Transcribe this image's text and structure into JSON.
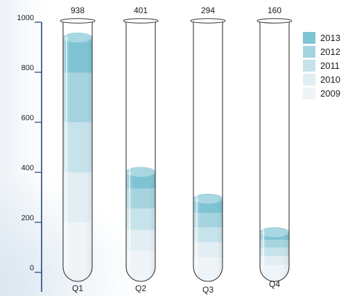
{
  "chart_data": {
    "type": "bar",
    "stacked": true,
    "categories": [
      "Q1",
      "Q2",
      "Q3",
      "Q4"
    ],
    "totals": [
      938,
      401,
      294,
      160
    ],
    "series": [
      {
        "name": "2009",
        "color": "#eef4f7",
        "values": [
          200,
          85,
          60,
          30
        ]
      },
      {
        "name": "2010",
        "color": "#e2eef3",
        "values": [
          200,
          85,
          60,
          35
        ]
      },
      {
        "name": "2011",
        "color": "#c6e2ea",
        "values": [
          200,
          85,
          60,
          35
        ]
      },
      {
        "name": "2012",
        "color": "#a5d4df",
        "values": [
          198,
          80,
          57,
          30
        ]
      },
      {
        "name": "2013",
        "color": "#7fc3d3",
        "values": [
          140,
          66,
          57,
          30
        ]
      }
    ],
    "yticks": [
      0,
      200,
      400,
      600,
      800,
      1000
    ],
    "ylim": [
      0,
      1000
    ],
    "legend": "right"
  }
}
